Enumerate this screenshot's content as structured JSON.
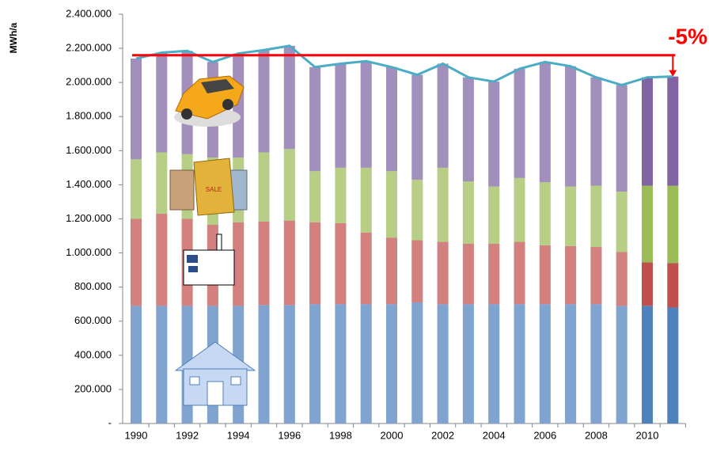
{
  "chart_data": {
    "type": "stacked_bar_line",
    "y_label": "MWh/a",
    "categories": [
      "1990",
      null,
      "1992",
      null,
      "1994",
      null,
      "1996",
      null,
      "1998",
      null,
      "2000",
      null,
      "2002",
      null,
      "2004",
      null,
      "2006",
      null,
      "2008",
      null,
      "2010",
      null
    ],
    "series": [
      {
        "color": "#4f81bd",
        "values": [
          690000,
          690000,
          690000,
          690000,
          690000,
          695000,
          695000,
          700000,
          700000,
          700000,
          700000,
          710000,
          700000,
          700000,
          700000,
          700000,
          700000,
          700000,
          700000,
          690000,
          690000,
          680000
        ]
      },
      {
        "color": "#c0504d",
        "values": [
          510000,
          540000,
          510000,
          475000,
          490000,
          490000,
          495000,
          480000,
          475000,
          420000,
          390000,
          365000,
          365000,
          355000,
          355000,
          365000,
          345000,
          340000,
          335000,
          315000,
          255000,
          260000
        ]
      },
      {
        "color": "#9bbb59",
        "values": [
          350000,
          360000,
          380000,
          395000,
          380000,
          405000,
          420000,
          300000,
          325000,
          380000,
          390000,
          355000,
          435000,
          365000,
          335000,
          375000,
          370000,
          350000,
          360000,
          355000,
          450000,
          455000
        ]
      },
      {
        "color": "#8064a2",
        "values": [
          590000,
          585000,
          605000,
          560000,
          610000,
          600000,
          605000,
          610000,
          610000,
          625000,
          610000,
          615000,
          610000,
          610000,
          615000,
          640000,
          705000,
          705000,
          635000,
          625000,
          635000,
          640000
        ]
      }
    ],
    "line": {
      "color": "#4bacc6",
      "values": [
        2140000,
        2175000,
        2185000,
        2120000,
        2170000,
        2190000,
        2215000,
        2090000,
        2110000,
        2125000,
        2090000,
        2045000,
        2110000,
        2030000,
        2005000,
        2080000,
        2120000,
        2095000,
        2030000,
        1985000,
        2030000,
        2035000
      ]
    },
    "reference_line": {
      "value": 2160000,
      "label": "-5%",
      "color": "#ff0000"
    },
    "ylim": [
      0,
      2400000
    ],
    "yticks": [
      {
        "value": 0,
        "label": "-"
      },
      {
        "value": 200000,
        "label": "200.000"
      },
      {
        "value": 400000,
        "label": "400.000"
      },
      {
        "value": 600000,
        "label": "600.000"
      },
      {
        "value": 800000,
        "label": "800.000"
      },
      {
        "value": 1000000,
        "label": "1.000.000"
      },
      {
        "value": 1200000,
        "label": "1.200.000"
      },
      {
        "value": 1400000,
        "label": "1.400.000"
      },
      {
        "value": 1600000,
        "label": "1.600.000"
      },
      {
        "value": 1800000,
        "label": "1.800.000"
      },
      {
        "value": 2000000,
        "label": "2.000.000"
      },
      {
        "value": 2200000,
        "label": "2.200.000"
      },
      {
        "value": 2400000,
        "label": "2.400.000"
      }
    ]
  }
}
